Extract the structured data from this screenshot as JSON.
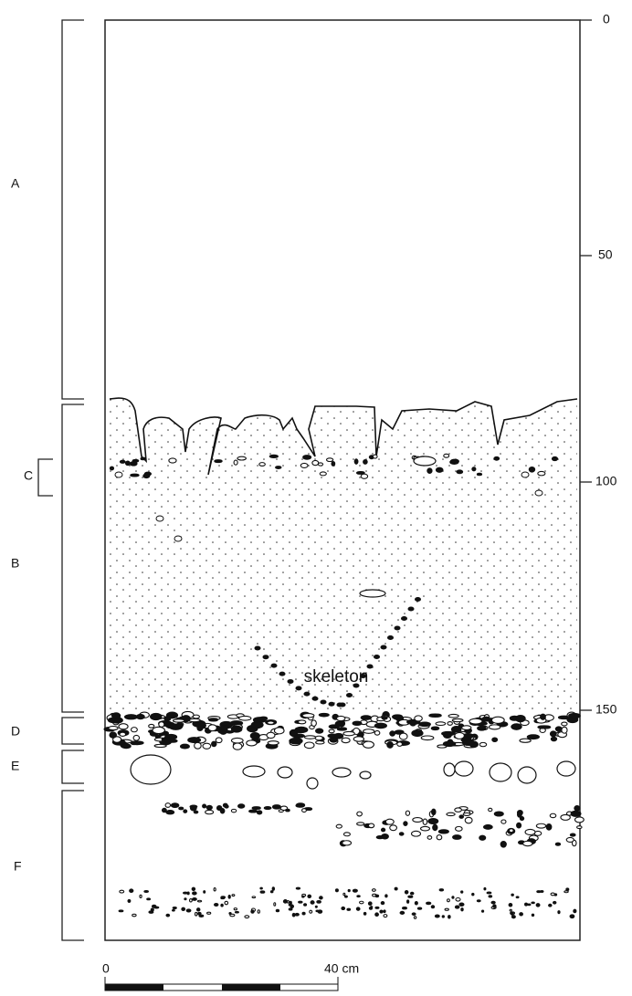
{
  "layers": [
    {
      "label": "A"
    },
    {
      "label": "C"
    },
    {
      "label": "B"
    },
    {
      "label": "D"
    },
    {
      "label": "E"
    },
    {
      "label": "F"
    }
  ],
  "depth_scale": {
    "labels": [
      "0",
      "50",
      "100",
      "150"
    ]
  },
  "annotation": {
    "text": "skeleton"
  },
  "scale_bar": {
    "start": "0",
    "end": "40 cm"
  }
}
